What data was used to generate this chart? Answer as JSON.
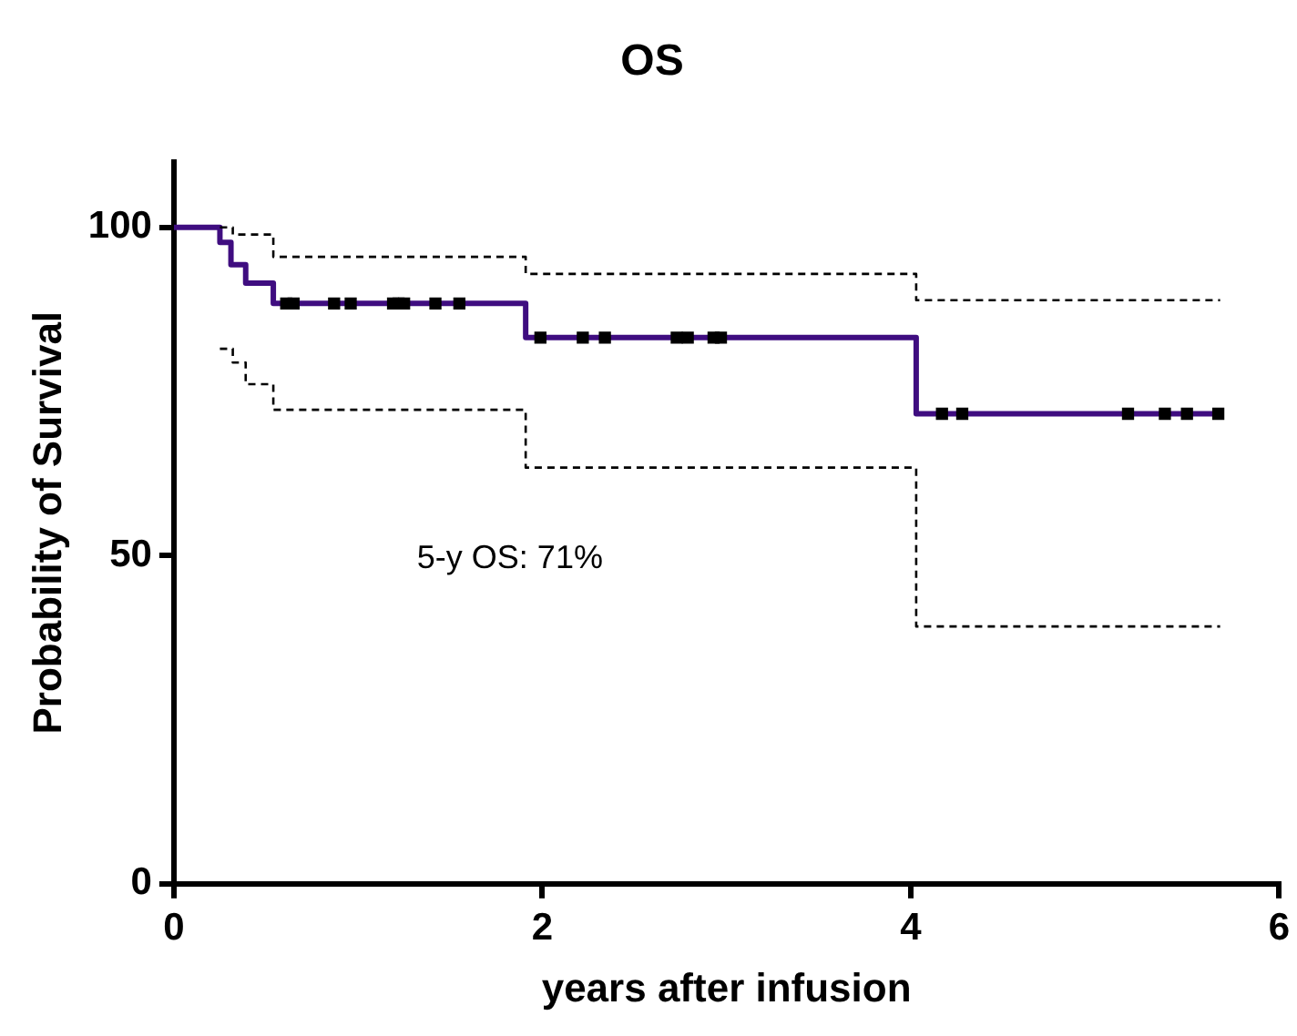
{
  "chart_data": {
    "type": "step",
    "title": "OS",
    "xlabel": "years after infusion",
    "ylabel": "Probability of Survival",
    "xlim": [
      0,
      6
    ],
    "xticks": [
      0,
      2,
      4,
      6
    ],
    "ylim": [
      0,
      110
    ],
    "yticks": [
      0,
      50,
      100
    ],
    "grid": false,
    "legend": false,
    "annotations": [
      "5-y OS: 71%"
    ],
    "series": [
      {
        "type": "step",
        "color": "#000000",
        "line_style": "dashed",
        "x": [
          0.25,
          0.32,
          0.54,
          1.91,
          4.03,
          5.68
        ],
        "values": [
          100,
          98.9,
          95.5,
          92.9,
          88.9,
          88.9
        ]
      },
      {
        "type": "step",
        "color": "#000000",
        "line_style": "dashed",
        "x": [
          0.25,
          0.32,
          0.39,
          0.54,
          1.91,
          4.03,
          5.68
        ],
        "values": [
          81.5,
          79.4,
          76.1,
          72.2,
          63.4,
          39.2,
          39.2
        ]
      },
      {
        "type": "step",
        "color": "#3f0d80",
        "line_style": "solid",
        "x": [
          0,
          0.25,
          0.31,
          0.39,
          0.54,
          1.91,
          4.03,
          5.68
        ],
        "values": [
          100,
          97.7,
          94.3,
          91.5,
          88.4,
          83.2,
          71.6,
          71.6
        ]
      },
      {
        "type": "scatter",
        "marker": "square",
        "color": "#000000",
        "x": [
          0.61,
          0.65,
          0.87,
          0.96,
          1.19,
          1.22,
          1.25,
          1.42,
          1.55,
          1.99,
          2.22,
          2.34,
          2.73,
          2.79,
          2.93,
          2.97,
          4.17,
          4.28,
          5.18,
          5.38,
          5.5,
          5.67
        ],
        "values": [
          88.4,
          88.4,
          88.4,
          88.4,
          88.4,
          88.4,
          88.4,
          88.4,
          88.4,
          83.2,
          83.2,
          83.2,
          83.2,
          83.2,
          83.2,
          83.2,
          71.6,
          71.6,
          71.6,
          71.6,
          71.6,
          71.6
        ]
      }
    ]
  }
}
